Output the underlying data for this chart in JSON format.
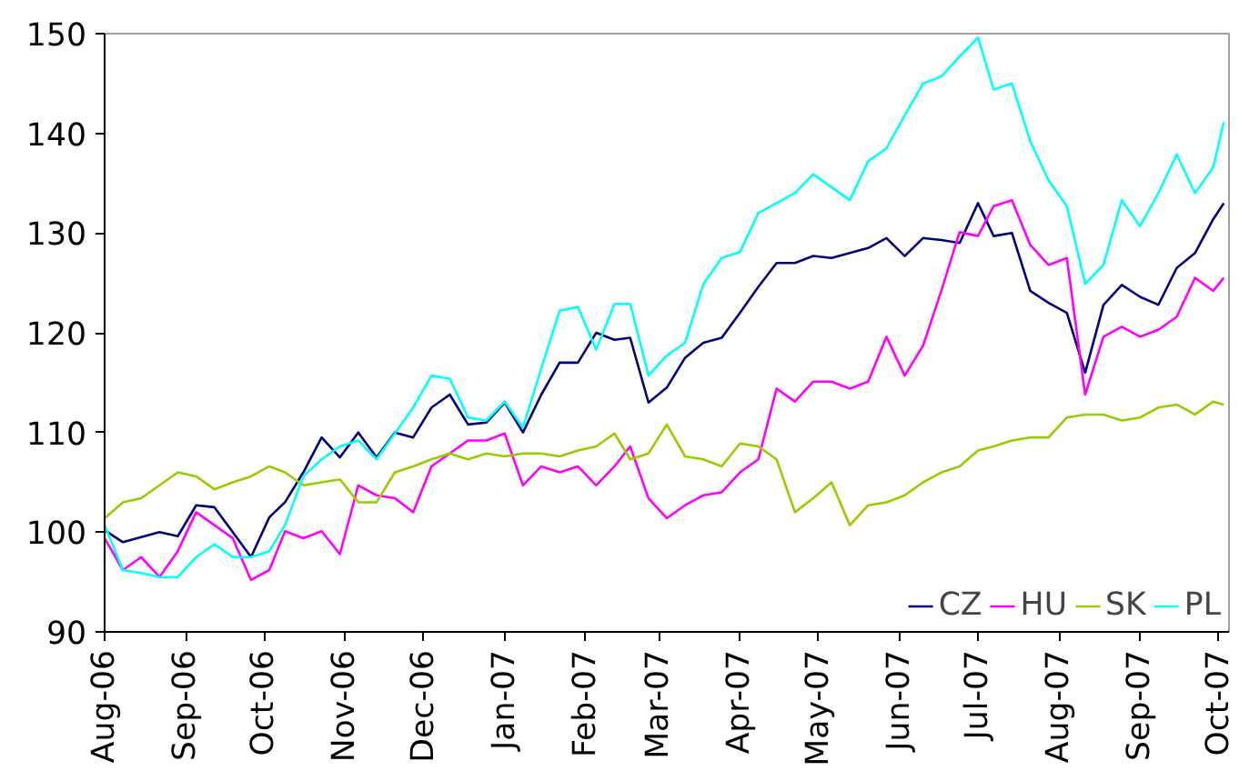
{
  "chart_data": {
    "type": "line",
    "x": [
      "2006-08-01",
      "2006-08-08",
      "2006-08-15",
      "2006-08-22",
      "2006-08-29",
      "2006-09-05",
      "2006-09-12",
      "2006-09-19",
      "2006-09-26",
      "2006-10-03",
      "2006-10-09",
      "2006-10-16",
      "2006-10-23",
      "2006-10-30",
      "2006-11-06",
      "2006-11-13",
      "2006-11-20",
      "2006-11-27",
      "2006-12-04",
      "2006-12-11",
      "2006-12-18",
      "2006-12-25",
      "2007-01-01",
      "2007-01-08",
      "2007-01-15",
      "2007-01-22",
      "2007-01-29",
      "2007-02-05",
      "2007-02-12",
      "2007-02-18",
      "2007-02-25",
      "2007-03-04",
      "2007-03-11",
      "2007-03-18",
      "2007-03-25",
      "2007-04-01",
      "2007-04-08",
      "2007-04-15",
      "2007-04-22",
      "2007-04-29",
      "2007-05-06",
      "2007-05-13",
      "2007-05-20",
      "2007-05-27",
      "2007-06-03",
      "2007-06-10",
      "2007-06-17",
      "2007-06-24",
      "2007-07-01",
      "2007-07-07",
      "2007-07-14",
      "2007-07-21",
      "2007-07-28",
      "2007-08-04",
      "2007-08-11",
      "2007-08-18",
      "2007-08-25",
      "2007-09-01",
      "2007-09-08",
      "2007-09-15",
      "2007-09-22",
      "2007-09-29",
      "2007-10-03"
    ],
    "series": [
      {
        "name": "CZ",
        "color": "#000080",
        "values": [
          100.2,
          99,
          99.5,
          100,
          99.6,
          102.7,
          102.5,
          100,
          97.5,
          101.5,
          103,
          106,
          109.5,
          107.5,
          110,
          107.5,
          110,
          109.5,
          112.5,
          113.8,
          110.8,
          111,
          113,
          110,
          113.8,
          117,
          117,
          120,
          119.3,
          119.5,
          113,
          114.5,
          117.5,
          119,
          119.5,
          122,
          124.6,
          127,
          127,
          127.7,
          127.5,
          128,
          128.5,
          129.5,
          127.7,
          129.5,
          129.3,
          129,
          133,
          129.7,
          130,
          124.2,
          123,
          122,
          116,
          122.8,
          124.8,
          123.6,
          122.8,
          126.5,
          128,
          131.4,
          133
        ]
      },
      {
        "name": "HU",
        "color": "#ff00ff",
        "values": [
          99.4,
          96.2,
          97.5,
          95.5,
          98.1,
          102,
          100.7,
          99.4,
          95.2,
          96.2,
          100.1,
          99.4,
          100.1,
          97.8,
          104.7,
          103.7,
          103.4,
          102,
          106.6,
          107.9,
          109.2,
          109.2,
          109.9,
          104.7,
          106.6,
          106,
          106.6,
          104.7,
          106.6,
          108.6,
          103.4,
          101.4,
          102.7,
          103.7,
          104,
          106,
          107.3,
          114.4,
          113.1,
          115.1,
          115.1,
          114.4,
          115.1,
          119.6,
          115.7,
          118.7,
          124.2,
          130.1,
          129.7,
          132.7,
          133.3,
          128.8,
          126.8,
          127.5,
          113.8,
          119.6,
          120.6,
          119.6,
          120.3,
          121.6,
          125.5,
          124.2,
          125.5
        ]
      },
      {
        "name": "SK",
        "color": "#99cc00",
        "values": [
          101.4,
          103,
          103.4,
          104.7,
          106,
          105.6,
          104.3,
          105,
          105.6,
          106.6,
          106,
          104.7,
          105,
          105.3,
          103,
          103,
          106,
          106.6,
          107.3,
          107.9,
          107.3,
          107.9,
          107.6,
          107.9,
          107.9,
          107.6,
          108.2,
          108.6,
          109.9,
          107.3,
          107.9,
          110.8,
          107.6,
          107.3,
          106.6,
          108.9,
          108.6,
          107.3,
          102,
          103.4,
          105,
          100.7,
          102.7,
          103,
          103.7,
          105,
          106,
          106.6,
          108.2,
          108.6,
          109.2,
          109.5,
          109.5,
          111.5,
          111.8,
          111.8,
          111.2,
          111.5,
          112.5,
          112.8,
          111.8,
          113.1,
          112.8
        ]
      },
      {
        "name": "PL",
        "color": "#00ffff",
        "values": [
          100.7,
          96.2,
          95.9,
          95.5,
          95.5,
          97.5,
          98.8,
          97.5,
          97.5,
          98.1,
          100.7,
          105.6,
          107.3,
          108.6,
          109.2,
          107.3,
          109.9,
          112.5,
          115.7,
          115.4,
          111.5,
          111.2,
          113.1,
          110.5,
          116.4,
          122.2,
          122.6,
          118.3,
          122.9,
          122.9,
          115.7,
          117.7,
          119,
          124.9,
          127.5,
          128.1,
          132,
          133,
          134,
          135.9,
          134.6,
          133.3,
          137.2,
          138.5,
          141.8,
          145,
          145.7,
          147.7,
          149.6,
          144.4,
          145,
          139.2,
          135.3,
          132.7,
          124.9,
          126.8,
          133.3,
          130.7,
          134,
          137.9,
          134,
          136.6,
          141.1
        ]
      }
    ],
    "xlim": [
      "2006-08-01",
      "2007-10-05"
    ],
    "xticks": [
      {
        "value": "2006-08-01",
        "label": "Aug-06"
      },
      {
        "value": "2006-09-01",
        "label": "Sep-06"
      },
      {
        "value": "2006-10-01",
        "label": "Oct-06"
      },
      {
        "value": "2006-11-01",
        "label": "Nov-06"
      },
      {
        "value": "2006-12-01",
        "label": "Dec-06"
      },
      {
        "value": "2007-01-01",
        "label": "Jan-07"
      },
      {
        "value": "2007-02-01",
        "label": "Feb-07"
      },
      {
        "value": "2007-03-01",
        "label": "Mar-07"
      },
      {
        "value": "2007-04-01",
        "label": "Apr-07"
      },
      {
        "value": "2007-05-01",
        "label": "May-07"
      },
      {
        "value": "2007-06-01",
        "label": "Jun-07"
      },
      {
        "value": "2007-07-01",
        "label": "Jul-07"
      },
      {
        "value": "2007-08-01",
        "label": "Aug-07"
      },
      {
        "value": "2007-09-01",
        "label": "Sep-07"
      },
      {
        "value": "2007-10-01",
        "label": "Oct-07"
      }
    ],
    "ylim": [
      90,
      150
    ],
    "yticks": [
      90,
      100,
      110,
      120,
      130,
      140,
      150
    ],
    "grid": false,
    "legend": "bottom right",
    "marker": "none",
    "line_style": "solid"
  }
}
